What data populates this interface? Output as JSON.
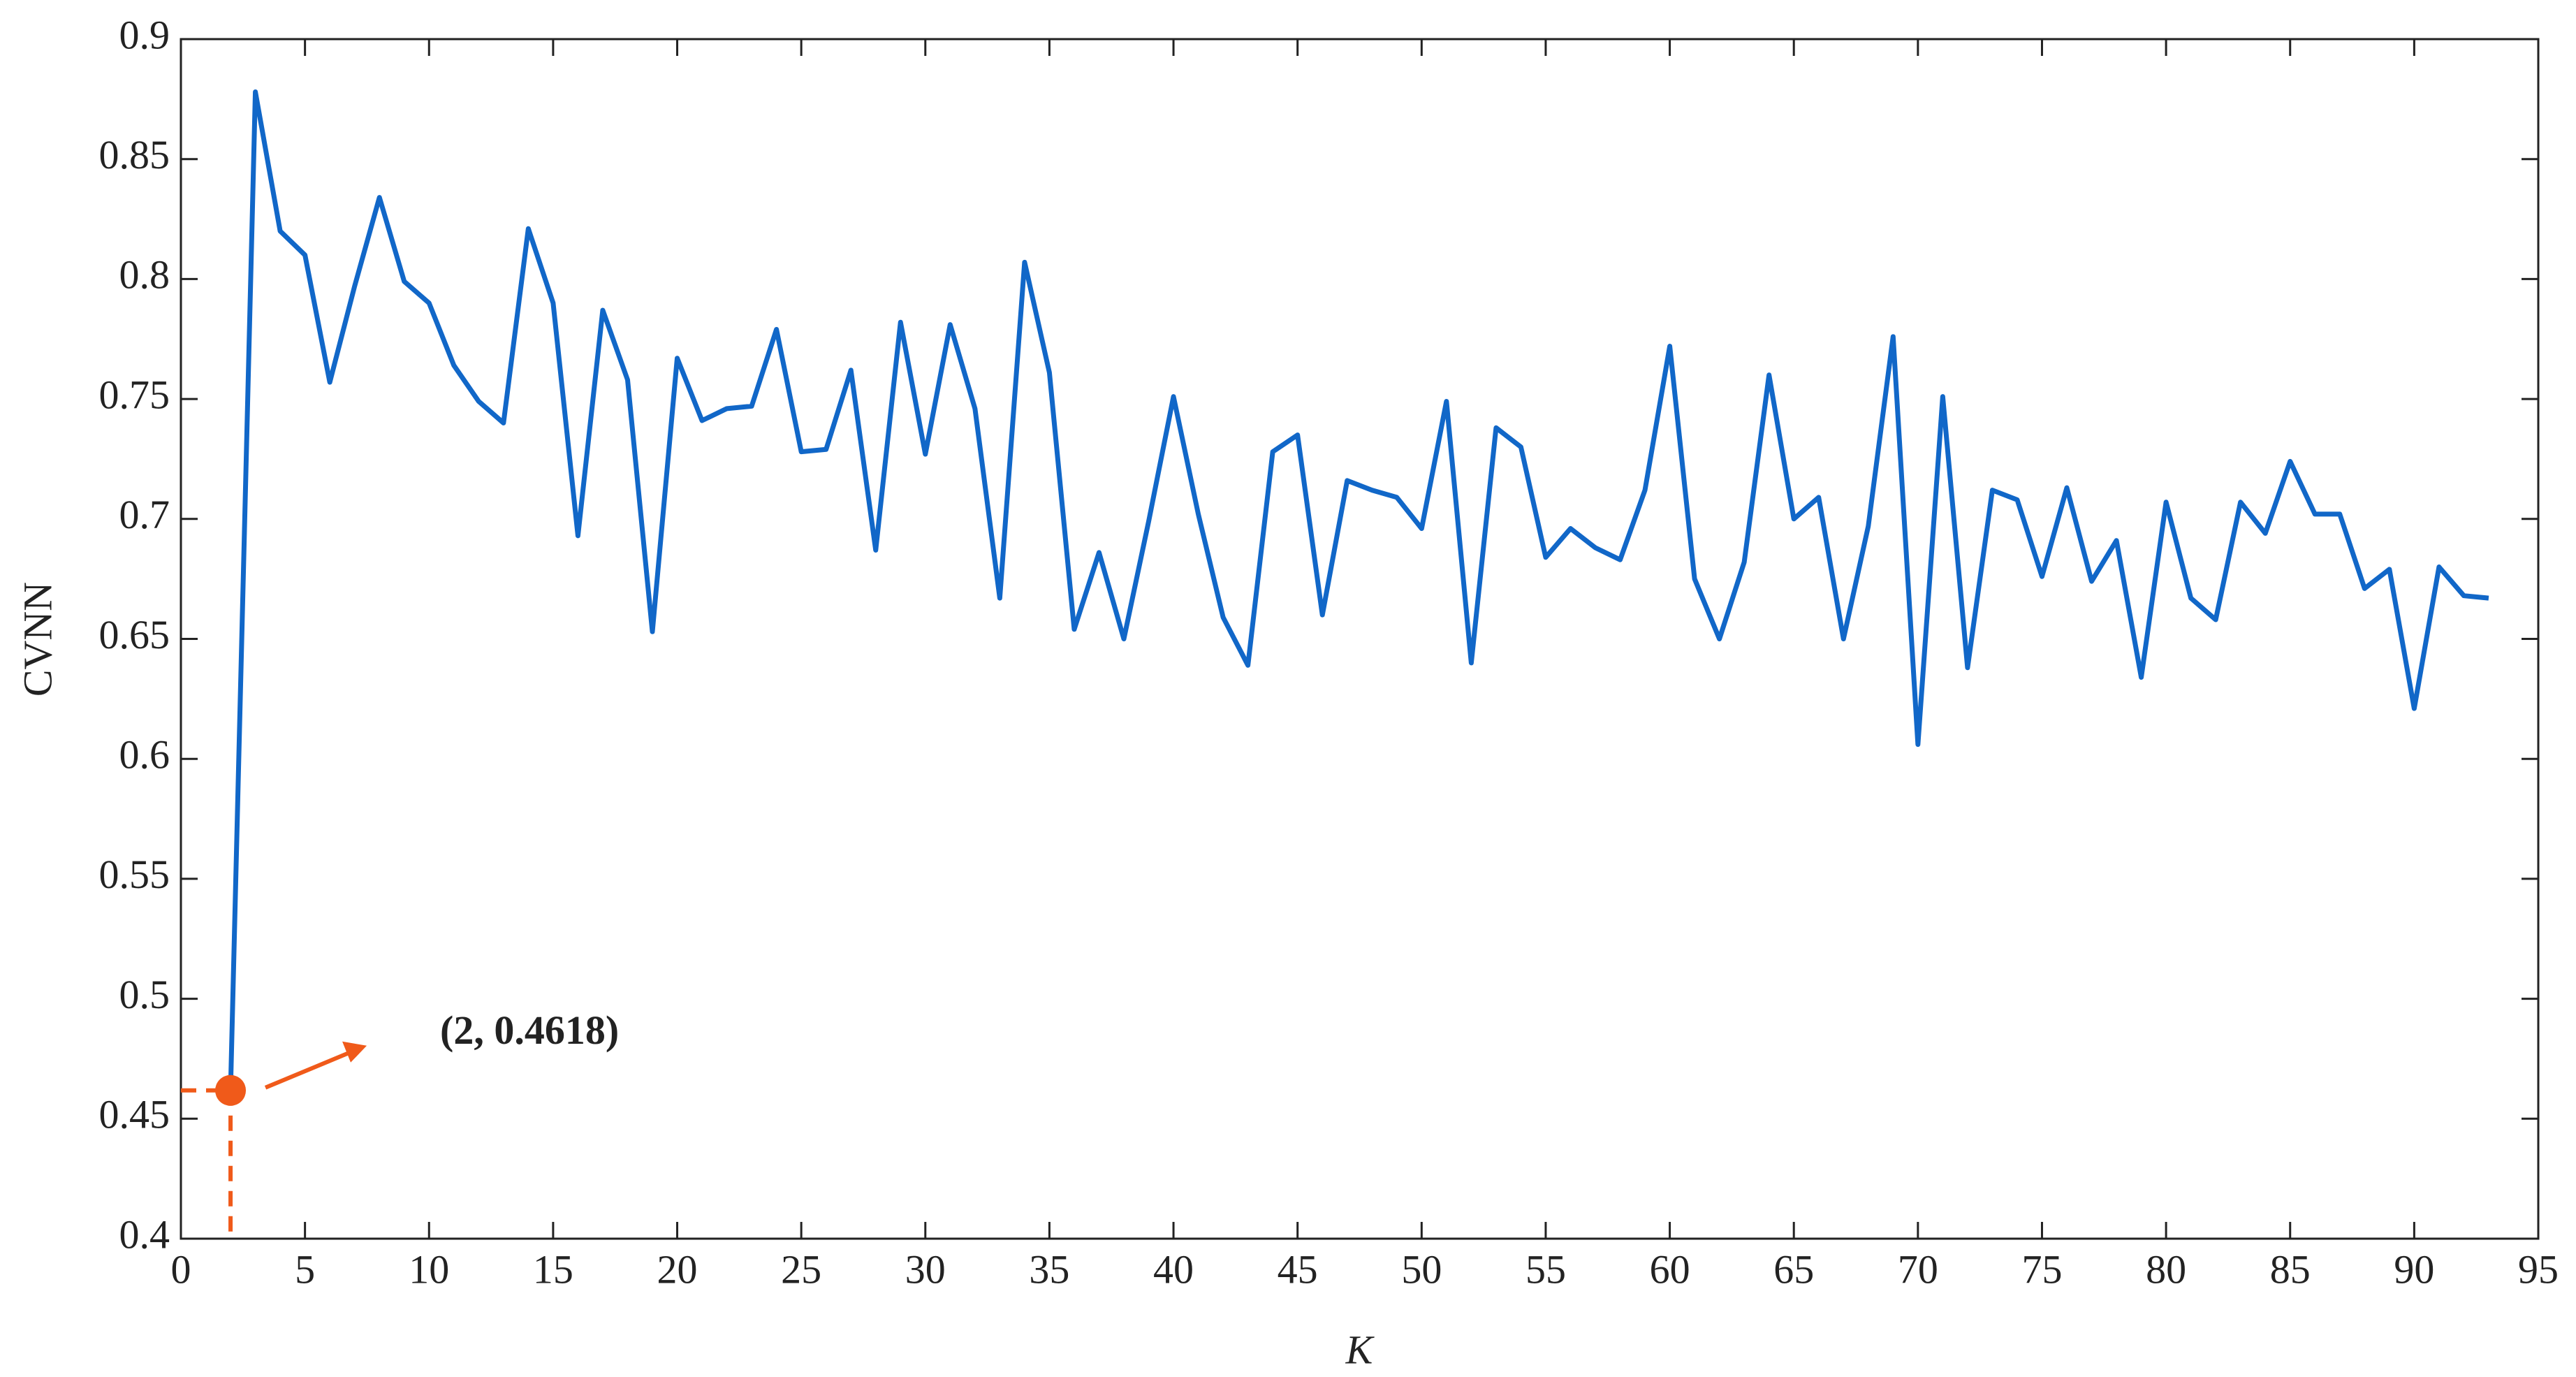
{
  "chart_data": {
    "type": "line",
    "xlabel": "K",
    "ylabel": "CVNN",
    "x": [
      2,
      3,
      4,
      5,
      6,
      7,
      8,
      9,
      10,
      11,
      12,
      13,
      14,
      15,
      16,
      17,
      18,
      19,
      20,
      21,
      22,
      23,
      24,
      25,
      26,
      27,
      28,
      29,
      30,
      31,
      32,
      33,
      34,
      35,
      36,
      37,
      38,
      39,
      40,
      41,
      42,
      43,
      44,
      45,
      46,
      47,
      48,
      49,
      50,
      51,
      52,
      53,
      54,
      55,
      56,
      57,
      58,
      59,
      60,
      61,
      62,
      63,
      64,
      65,
      66,
      67,
      68,
      69,
      70,
      71,
      72,
      73,
      74,
      75,
      76,
      77,
      78,
      79,
      80,
      81,
      82,
      83,
      84,
      85,
      86,
      87,
      88,
      89,
      90,
      91,
      92,
      93
    ],
    "series": [
      {
        "color": "#1167c8",
        "values": [
          0.4618,
          0.878,
          0.82,
          0.81,
          0.757,
          0.797,
          0.834,
          0.799,
          0.79,
          0.764,
          0.749,
          0.74,
          0.821,
          0.79,
          0.693,
          0.787,
          0.758,
          0.653,
          0.767,
          0.741,
          0.746,
          0.747,
          0.779,
          0.728,
          0.729,
          0.762,
          0.687,
          0.782,
          0.727,
          0.781,
          0.746,
          0.667,
          0.807,
          0.761,
          0.654,
          0.686,
          0.65,
          0.699,
          0.751,
          0.702,
          0.659,
          0.639,
          0.728,
          0.735,
          0.66,
          0.716,
          0.712,
          0.709,
          0.696,
          0.749,
          0.64,
          0.738,
          0.73,
          0.684,
          0.696,
          0.688,
          0.683,
          0.712,
          0.772,
          0.675,
          0.65,
          0.682,
          0.76,
          0.7,
          0.709,
          0.65,
          0.697,
          0.776,
          0.606,
          0.751,
          0.638,
          0.712,
          0.708,
          0.676,
          0.713,
          0.674,
          0.691,
          0.634,
          0.707,
          0.667,
          0.658,
          0.707,
          0.694,
          0.724,
          0.702,
          0.702,
          0.671,
          0.679,
          0.621,
          0.68,
          0.668,
          0.667
        ]
      }
    ],
    "annotation": {
      "text": "(2, 0.4618)",
      "color": "#e8141c",
      "marker_color": "#f05a1a"
    },
    "xlim": [
      0,
      95
    ],
    "xticks": [
      0,
      5,
      10,
      15,
      20,
      25,
      30,
      35,
      40,
      45,
      50,
      55,
      60,
      65,
      70,
      75,
      80,
      85,
      90,
      95
    ],
    "ylim": [
      0.4,
      0.9
    ],
    "yticks": [
      0.4,
      0.45,
      0.5,
      0.55,
      0.6,
      0.65,
      0.7,
      0.75,
      0.8,
      0.85,
      0.9
    ]
  }
}
